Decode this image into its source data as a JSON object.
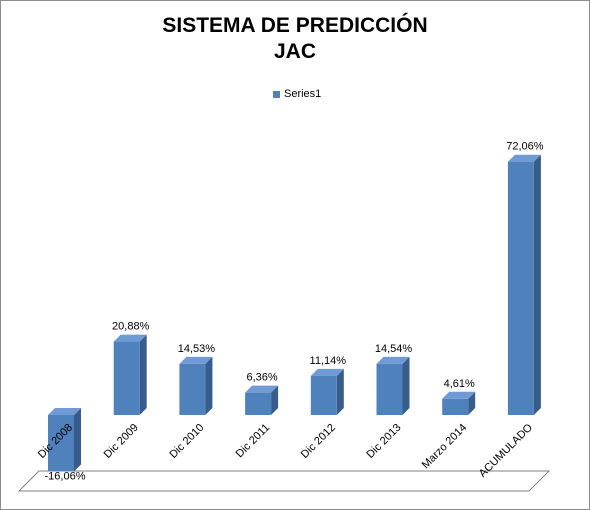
{
  "chart_data": {
    "type": "bar",
    "title": [
      "SISTEMA DE PREDICCIÓN",
      "JAC"
    ],
    "legend": {
      "placement": "top",
      "entries": [
        "Series1"
      ]
    },
    "categories": [
      "Dic 2008",
      "Dic 2009",
      "Dic 2010",
      "Dic 2011",
      "Dic 2012",
      "Dic 2013",
      "Marzo 2014",
      "ACUMULADO"
    ],
    "series": [
      {
        "name": "Series1",
        "values": [
          -16.06,
          20.88,
          14.53,
          6.36,
          11.14,
          14.54,
          4.61,
          72.06
        ],
        "labels": [
          "-16,06%",
          "20,88%",
          "14,53%",
          "6,36%",
          "11,14%",
          "14,54%",
          "4,61%",
          "72,06%"
        ]
      }
    ],
    "grid": false,
    "style": "3d-column",
    "colors": {
      "front": "#4f81bd",
      "top": "#6f9ad3",
      "side": "#385d8a",
      "floor_edge": "#7f7f7f"
    }
  }
}
